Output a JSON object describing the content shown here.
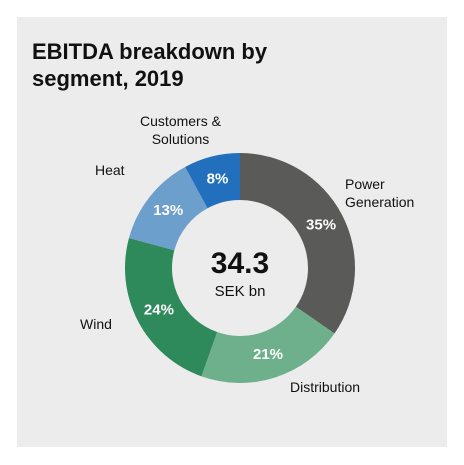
{
  "chart_data": {
    "type": "donut",
    "title": "EBITDA breakdown by segment, 2019",
    "center_value": "34.3",
    "center_label": "SEK bn",
    "categories": [
      "Power Generation",
      "Distribution",
      "Wind",
      "Heat",
      "Customers & Solutions"
    ],
    "values": [
      35,
      21,
      24,
      13,
      8
    ],
    "value_labels": [
      "35%",
      "21%",
      "24%",
      "13%",
      "8%"
    ],
    "colors": [
      "#5a5a59",
      "#6fb08c",
      "#2f8a5b",
      "#6c9fcc",
      "#2270bd"
    ]
  }
}
